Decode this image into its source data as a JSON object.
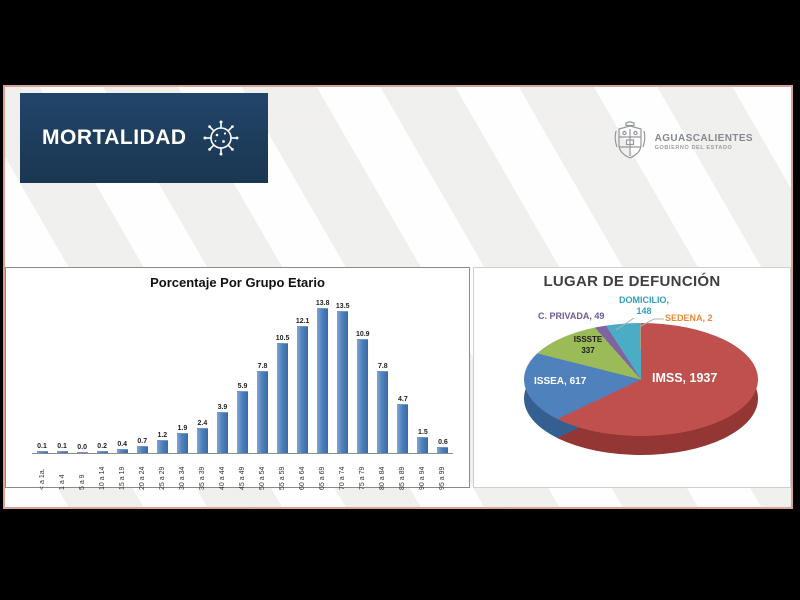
{
  "header": {
    "title": "MORTALIDAD",
    "logo": {
      "name": "AGUASCALIENTES",
      "subtitle": "GOBIERNO DEL ESTADO"
    }
  },
  "colors": {
    "banner_navy": "#1d3c5a",
    "frame_black": "#000000",
    "border_salmon": "#d8a294",
    "bar_blue": "#4f81bd"
  },
  "chart_data": [
    {
      "type": "bar",
      "title": "Porcentaje Por Grupo Etario",
      "categories": [
        "< a 1a.",
        "1 a 4",
        "5 a 9",
        "10 a 14",
        "15 a 19",
        "20 a 24",
        "25 a 29",
        "30 a 34",
        "35 a 39",
        "40 a 44",
        "45 a 49",
        "50 a 54",
        "55 a 59",
        "60 a 64",
        "65 a 69",
        "70 a 74",
        "75 a 79",
        "80 a 84",
        "85 a 89",
        "90 a 94",
        "95 a 99"
      ],
      "values": [
        0.1,
        0.1,
        0.0,
        0.2,
        0.4,
        0.7,
        1.2,
        1.9,
        2.4,
        3.9,
        5.9,
        7.8,
        10.5,
        12.1,
        13.8,
        13.5,
        10.9,
        7.8,
        4.7,
        1.5,
        0.6
      ],
      "xlabel": "",
      "ylabel": "",
      "ylim": [
        0,
        15
      ],
      "grid": false,
      "bar_color": "#4f81bd"
    },
    {
      "type": "pie",
      "title": "LUGAR DE DEFUNCIÓN",
      "slices": [
        {
          "label": "IMSS",
          "value": 1937,
          "color": "#c0504d",
          "side_color": "#943634"
        },
        {
          "label": "ISSEA",
          "value": 617,
          "color": "#4f81bd",
          "side_color": "#365f91"
        },
        {
          "label": "ISSSTE",
          "value": 337,
          "color": "#9bbb59",
          "side_color": "#76923c"
        },
        {
          "label": "C. PRIVADA",
          "value": 49,
          "color": "#8064a2",
          "side_color": "#5f497a"
        },
        {
          "label": "DOMICILIO",
          "value": 148,
          "color": "#4bacc6",
          "side_color": "#31859b"
        },
        {
          "label": "SEDENA",
          "value": 2,
          "color": "#f79646",
          "side_color": "#e36c09"
        }
      ],
      "labels": {
        "imss": "IMSS, 1937",
        "issea": "ISSEA, 617",
        "issste_l1": "ISSSTE",
        "issste_l2": "337",
        "c_privada": "C. PRIVADA, 49",
        "domicilio_l1": "DOMICILIO,",
        "domicilio_l2": "148",
        "sedena": "SEDENA, 2"
      },
      "legend_position": "none",
      "style": "3d"
    }
  ]
}
